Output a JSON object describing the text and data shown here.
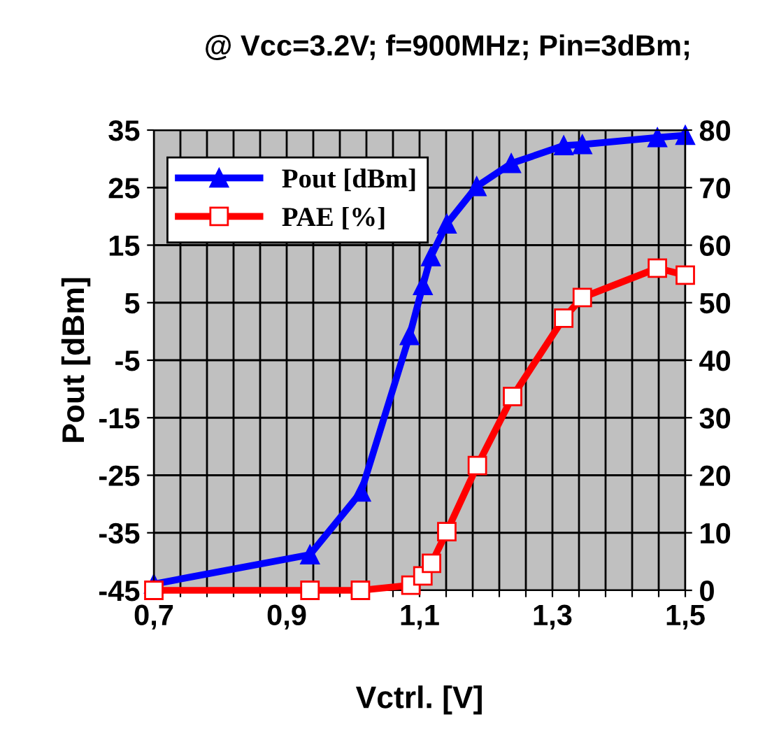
{
  "chart_data": {
    "type": "line",
    "title": "@ Vcc=3.2V; f=900MHz; Pin=3dBm;",
    "xlabel": "Vctrl. [V]",
    "ylabel": "Pout [dBm]",
    "xlim": [
      0.7,
      1.5
    ],
    "ylim": [
      -45,
      35
    ],
    "y2lim": [
      0,
      80
    ],
    "xticks": [
      {
        "value": 0.7,
        "label": "0,7"
      },
      {
        "value": 0.74,
        "label": null
      },
      {
        "value": 0.78,
        "label": null
      },
      {
        "value": 0.82,
        "label": null
      },
      {
        "value": 0.86,
        "label": null
      },
      {
        "value": 0.9,
        "label": "0,9"
      },
      {
        "value": 0.94,
        "label": null
      },
      {
        "value": 0.98,
        "label": null
      },
      {
        "value": 1.02,
        "label": null
      },
      {
        "value": 1.06,
        "label": null
      },
      {
        "value": 1.1,
        "label": "1,1"
      },
      {
        "value": 1.14,
        "label": null
      },
      {
        "value": 1.18,
        "label": null
      },
      {
        "value": 1.22,
        "label": null
      },
      {
        "value": 1.26,
        "label": null
      },
      {
        "value": 1.3,
        "label": "1,3"
      },
      {
        "value": 1.34,
        "label": null
      },
      {
        "value": 1.38,
        "label": null
      },
      {
        "value": 1.42,
        "label": null
      },
      {
        "value": 1.46,
        "label": null
      },
      {
        "value": 1.5,
        "label": "1,5"
      }
    ],
    "yticks": [
      -45,
      -35,
      -25,
      -15,
      -5,
      5,
      15,
      25,
      35
    ],
    "y2ticks": [
      0,
      10,
      20,
      30,
      40,
      50,
      60,
      70,
      80
    ],
    "grid": true,
    "legend": "top left",
    "line_style": "solid",
    "series": [
      {
        "name": "Pout [dBm]",
        "color": "#0000ff",
        "marker": "triangle",
        "x": [
          0.7,
          0.935,
          1.012,
          1.085,
          1.105,
          1.117,
          1.141,
          1.186,
          1.238,
          1.317,
          1.345,
          1.458,
          1.5
        ],
        "values": [
          -43.9,
          -38.8,
          -27.9,
          -0.7,
          8.0,
          13.0,
          18.7,
          25.2,
          29.2,
          32.3,
          32.5,
          33.7,
          34.1
        ]
      },
      {
        "name": "PAE [%]",
        "color": "#ff0000",
        "marker": "square",
        "axis": "y2",
        "x": [
          0.7,
          0.935,
          1.011,
          1.087,
          1.105,
          1.118,
          1.141,
          1.187,
          1.24,
          1.317,
          1.345,
          1.458,
          1.5
        ],
        "values": [
          0,
          0,
          0,
          0.9,
          2.5,
          4.7,
          10.2,
          21.7,
          33.7,
          47.3,
          50.9,
          56.0,
          54.8
        ]
      }
    ]
  }
}
